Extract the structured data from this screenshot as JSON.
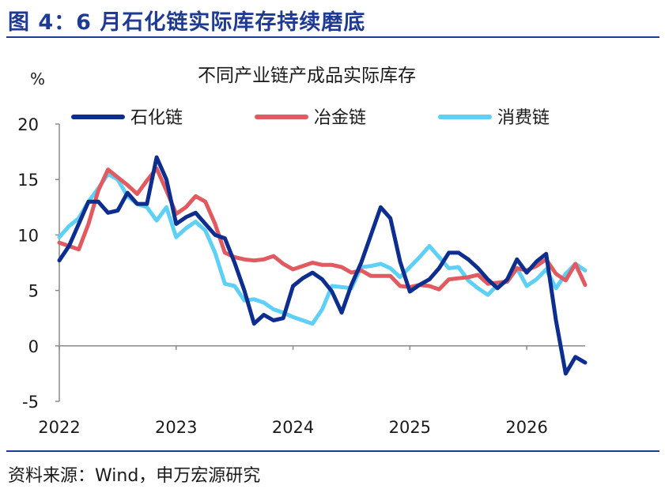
{
  "figure_title": "图 4：6 月石化链实际库存持续磨底",
  "source": "资料来源：Wind，申万宏源研究",
  "colors": {
    "accent": "#1f3a93",
    "petro": "#0d2d8f",
    "metal": "#e05a5f",
    "consumer": "#5fd0f5"
  },
  "chart_data": {
    "type": "line",
    "title": "不同产业链产成品实际库存",
    "ylabel": "%",
    "ylim": [
      -5,
      20
    ],
    "yticks": [
      "20",
      "15",
      "10",
      "5",
      "0",
      "-5"
    ],
    "ytick_values": [
      20,
      15,
      10,
      5,
      0,
      -5
    ],
    "xtick_labels": [
      "2022",
      "2023",
      "2024",
      "2025",
      "2026"
    ],
    "xtick_values": [
      0,
      12,
      24,
      36,
      48
    ],
    "xlim": [
      0,
      54
    ],
    "grid": false,
    "legend_position": "top",
    "series": [
      {
        "name": "石化链",
        "color_key": "petro",
        "values": [
          7.7,
          9.0,
          11.0,
          13.0,
          13.0,
          12.0,
          12.2,
          13.8,
          12.8,
          12.8,
          17.0,
          15.0,
          11.0,
          11.6,
          12.0,
          11.0,
          10.0,
          9.7,
          7.5,
          5.0,
          2.0,
          2.8,
          2.3,
          2.5,
          5.4,
          6.1,
          6.6,
          6.0,
          4.9,
          3.0,
          5.5,
          7.5,
          10.0,
          12.5,
          11.5,
          7.6,
          4.9,
          5.5,
          6.0,
          7.0,
          8.4,
          8.4,
          7.8,
          7.0,
          6.0,
          5.2,
          6.0,
          7.8,
          6.6,
          7.6,
          8.3,
          2.3,
          -2.5,
          -1.0,
          -1.5
        ]
      },
      {
        "name": "冶金链",
        "color_key": "metal",
        "values": [
          9.3,
          9.0,
          8.7,
          11.0,
          14.0,
          15.9,
          15.2,
          14.5,
          13.7,
          14.9,
          16.0,
          14.0,
          11.9,
          12.5,
          13.5,
          13.0,
          11.0,
          8.4,
          8.0,
          7.8,
          7.7,
          7.8,
          8.1,
          7.4,
          6.9,
          7.2,
          7.5,
          7.3,
          7.3,
          7.1,
          6.6,
          6.8,
          6.3,
          6.3,
          6.3,
          5.4,
          5.3,
          5.5,
          5.4,
          5.1,
          6.0,
          6.1,
          6.2,
          6.4,
          5.6,
          5.7,
          5.8,
          7.0,
          6.8,
          7.2,
          7.8,
          6.5,
          5.9,
          7.4,
          5.5
        ]
      },
      {
        "name": "消费链",
        "color_key": "consumer",
        "values": [
          9.8,
          10.8,
          11.5,
          13.0,
          14.2,
          15.5,
          15.0,
          13.5,
          12.8,
          12.5,
          11.3,
          12.5,
          9.8,
          10.6,
          11.2,
          10.4,
          8.4,
          5.6,
          5.4,
          4.1,
          4.2,
          3.9,
          3.3,
          3.0,
          2.6,
          2.3,
          2.0,
          3.3,
          5.4,
          5.3,
          5.2,
          7.1,
          7.2,
          7.4,
          7.0,
          6.2,
          7.1,
          8.0,
          9.0,
          8.0,
          7.0,
          7.1,
          5.9,
          5.2,
          4.6,
          5.5,
          5.8,
          7.0,
          5.4,
          6.0,
          6.9,
          5.2,
          6.5,
          7.4,
          6.8
        ]
      }
    ]
  }
}
